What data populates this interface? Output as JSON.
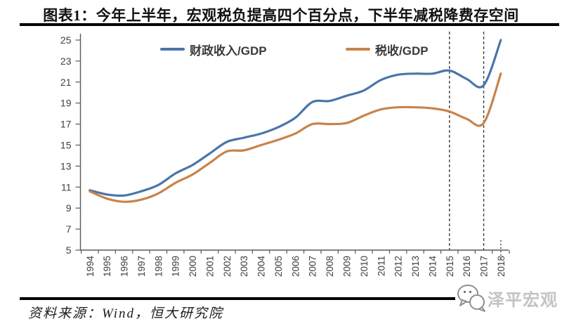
{
  "page": {
    "title": "图表1：今年上半年，宏观税负提高四个百分点，下半年减税降费存空间",
    "source_note": "资料来源：Wind，恒大研究院",
    "watermark_text": "泽平宏观"
  },
  "colors": {
    "series_fiscal": "#4A76A9",
    "series_tax": "#C8834A",
    "axis": "#595959",
    "tick_label": "#404040",
    "dashed_line": "#3F3F3F",
    "rule": "#000000",
    "watermark": "#C3C3C3"
  },
  "chart_data": {
    "type": "line",
    "title": "图表1：今年上半年，宏观税负提高四个百分点，下半年减税降费存空间",
    "x": [
      1994,
      1995,
      1996,
      1997,
      1998,
      1999,
      2000,
      2001,
      2002,
      2003,
      2004,
      2005,
      2006,
      2007,
      2008,
      2009,
      2010,
      2011,
      2012,
      2013,
      2014,
      2015,
      2016,
      2017,
      2018
    ],
    "xtick_labels": [
      "1994",
      "1995",
      "1996",
      "1997",
      "1998",
      "1999",
      "2000",
      "2001",
      "2002",
      "2003",
      "2004",
      "2005",
      "2006",
      "2007",
      "2008",
      "2009",
      "2010",
      "2011",
      "2012",
      "2013",
      "2014",
      "2015",
      "2016",
      "2017",
      "2018"
    ],
    "series": [
      {
        "name": "财政收入/GDP",
        "color": "#4A76A9",
        "values": [
          10.7,
          10.3,
          10.2,
          10.6,
          11.2,
          12.3,
          13.1,
          14.2,
          15.3,
          15.7,
          16.1,
          16.7,
          17.6,
          19.1,
          19.2,
          19.7,
          20.2,
          21.2,
          21.7,
          21.8,
          21.8,
          22.1,
          21.3,
          20.7,
          25.0
        ]
      },
      {
        "name": "税收/GDP",
        "color": "#C8834A",
        "values": [
          10.6,
          9.9,
          9.6,
          9.8,
          10.4,
          11.4,
          12.2,
          13.3,
          14.4,
          14.5,
          15.0,
          15.5,
          16.1,
          17.0,
          17.0,
          17.1,
          17.8,
          18.4,
          18.6,
          18.6,
          18.5,
          18.2,
          17.5,
          17.1,
          21.8
        ]
      }
    ],
    "ylim": [
      5,
      25
    ],
    "yticks": [
      5,
      7,
      9,
      11,
      13,
      15,
      17,
      19,
      21,
      23,
      25
    ],
    "grid": false,
    "legend_position": "top",
    "dashed_vlines_x": [
      2015,
      2017
    ],
    "dotted_stub_x": 2018,
    "xlabel": "",
    "ylabel": ""
  }
}
